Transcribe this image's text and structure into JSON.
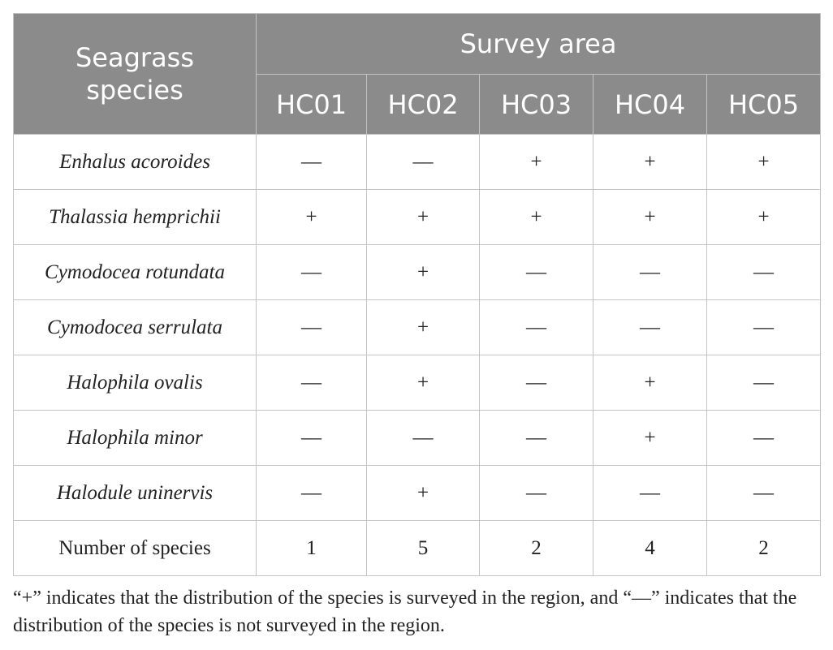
{
  "table": {
    "header": {
      "corner": "Seagrass species",
      "group": "Survey area",
      "columns": [
        "HC01",
        "HC02",
        "HC03",
        "HC04",
        "HC05"
      ]
    },
    "rows": [
      {
        "label": "Enhalus acoroides",
        "cells": [
          "––",
          "––",
          "+",
          "+",
          "+"
        ]
      },
      {
        "label": "Thalassia hemprichii",
        "cells": [
          "+",
          "+",
          "+",
          "+",
          "+"
        ]
      },
      {
        "label": "Cymodocea rotundata",
        "cells": [
          "––",
          "+",
          "––",
          "––",
          "––"
        ]
      },
      {
        "label": "Cymodocea serrulata",
        "cells": [
          "––",
          "+",
          "––",
          "––",
          "––"
        ]
      },
      {
        "label": "Halophila ovalis",
        "cells": [
          "––",
          "+",
          "––",
          "+",
          "––"
        ]
      },
      {
        "label": "Halophila minor",
        "cells": [
          "––",
          "––",
          "––",
          "+",
          "––"
        ]
      },
      {
        "label": "Halodule uninervis",
        "cells": [
          "––",
          "+",
          "––",
          "––",
          "––"
        ]
      }
    ],
    "total": {
      "label": "Number of species",
      "cells": [
        1,
        5,
        2,
        4,
        2
      ]
    }
  },
  "footnote": "“+” indicates that the distribution of the species is surveyed in the region, and “––” indicates that the distribution of the species is not surveyed in the region."
}
